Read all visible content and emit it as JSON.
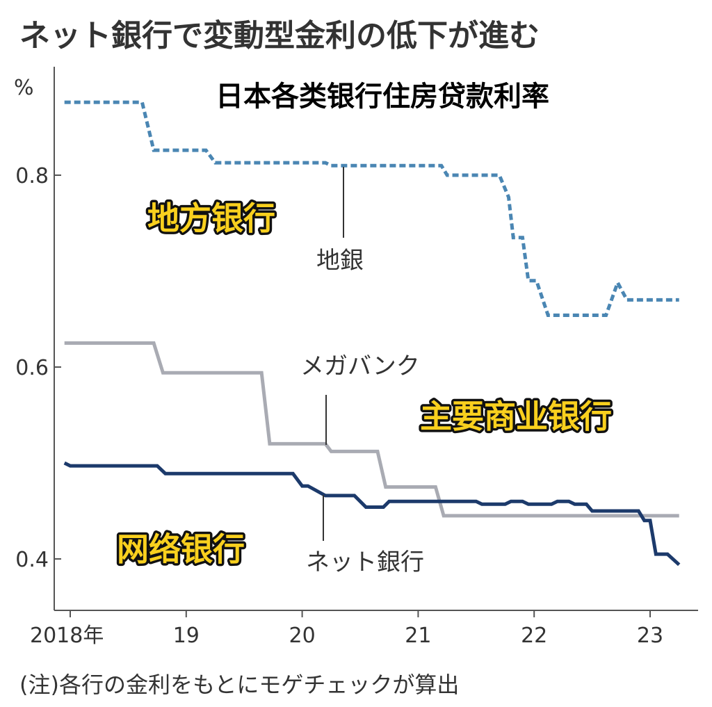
{
  "title": "ネット銀行で変動型金利の低下が進む",
  "overlay_title": "日本各类银行住房贷款利率",
  "footnote": "(注)各行の金利をもとにモゲチェックが算出",
  "colors": {
    "chihou": "#4a86b3",
    "mega": "#a9abb3",
    "net": "#1c3a6b",
    "axis": "#555555",
    "overlay_fill": "#f9d01e",
    "overlay_stroke": "#111111"
  },
  "chart_data": {
    "type": "line",
    "title": "ネット銀行で変動型金利の低下が進む",
    "unit": "%",
    "x_tick_labels": [
      "2018年",
      "19",
      "20",
      "21",
      "22",
      "23"
    ],
    "x_tick_values": [
      2018,
      2019,
      2020,
      2021,
      2022,
      2023
    ],
    "xlim": [
      2017.85,
      2023.4
    ],
    "y_tick_labels": [
      "0.4",
      "0.6",
      "0.8"
    ],
    "y_tick_values": [
      0.4,
      0.6,
      0.8
    ],
    "ylim": [
      0.348,
      0.878
    ],
    "grid": false,
    "series": [
      {
        "name": "地銀",
        "style": "dashed",
        "color_key": "chihou",
        "points": [
          [
            2017.95,
            0.876
          ],
          [
            2018.62,
            0.876
          ],
          [
            2018.72,
            0.826
          ],
          [
            2019.17,
            0.826
          ],
          [
            2019.25,
            0.813
          ],
          [
            2020.2,
            0.813
          ],
          [
            2020.25,
            0.81
          ],
          [
            2021.2,
            0.81
          ],
          [
            2021.25,
            0.8
          ],
          [
            2021.7,
            0.8
          ],
          [
            2021.78,
            0.777
          ],
          [
            2021.82,
            0.735
          ],
          [
            2021.9,
            0.735
          ],
          [
            2021.95,
            0.69
          ],
          [
            2022.02,
            0.69
          ],
          [
            2022.12,
            0.654
          ],
          [
            2022.62,
            0.654
          ],
          [
            2022.72,
            0.688
          ],
          [
            2022.8,
            0.67
          ],
          [
            2023.25,
            0.67
          ]
        ]
      },
      {
        "name": "メガバンク",
        "style": "solid",
        "color_key": "mega",
        "points": [
          [
            2017.95,
            0.625
          ],
          [
            2018.72,
            0.625
          ],
          [
            2018.8,
            0.594
          ],
          [
            2019.65,
            0.594
          ],
          [
            2019.72,
            0.52
          ],
          [
            2020.2,
            0.52
          ],
          [
            2020.25,
            0.512
          ],
          [
            2020.65,
            0.512
          ],
          [
            2020.72,
            0.475
          ],
          [
            2021.15,
            0.475
          ],
          [
            2021.22,
            0.445
          ],
          [
            2023.25,
            0.445
          ]
        ]
      },
      {
        "name": "ネット銀行",
        "style": "solid",
        "color_key": "net",
        "points": [
          [
            2017.95,
            0.5
          ],
          [
            2018.0,
            0.497
          ],
          [
            2018.75,
            0.497
          ],
          [
            2018.82,
            0.489
          ],
          [
            2019.92,
            0.489
          ],
          [
            2020.0,
            0.476
          ],
          [
            2020.05,
            0.476
          ],
          [
            2020.2,
            0.466
          ],
          [
            2020.45,
            0.466
          ],
          [
            2020.55,
            0.454
          ],
          [
            2020.7,
            0.454
          ],
          [
            2020.75,
            0.46
          ],
          [
            2021.5,
            0.46
          ],
          [
            2021.55,
            0.457
          ],
          [
            2021.75,
            0.457
          ],
          [
            2021.8,
            0.46
          ],
          [
            2021.9,
            0.46
          ],
          [
            2021.95,
            0.457
          ],
          [
            2022.15,
            0.457
          ],
          [
            2022.2,
            0.46
          ],
          [
            2022.3,
            0.46
          ],
          [
            2022.35,
            0.457
          ],
          [
            2022.45,
            0.457
          ],
          [
            2022.5,
            0.45
          ],
          [
            2022.9,
            0.45
          ],
          [
            2022.95,
            0.44
          ],
          [
            2023.0,
            0.44
          ],
          [
            2023.05,
            0.405
          ],
          [
            2023.15,
            0.405
          ],
          [
            2023.25,
            0.394
          ]
        ]
      }
    ]
  },
  "series_labels": {
    "chihou": "地銀",
    "mega": "メガバンク",
    "net": "ネット銀行"
  },
  "overlay_labels": {
    "chihou": "地方银行",
    "mega": "主要商业银行",
    "net": "网络银行"
  }
}
